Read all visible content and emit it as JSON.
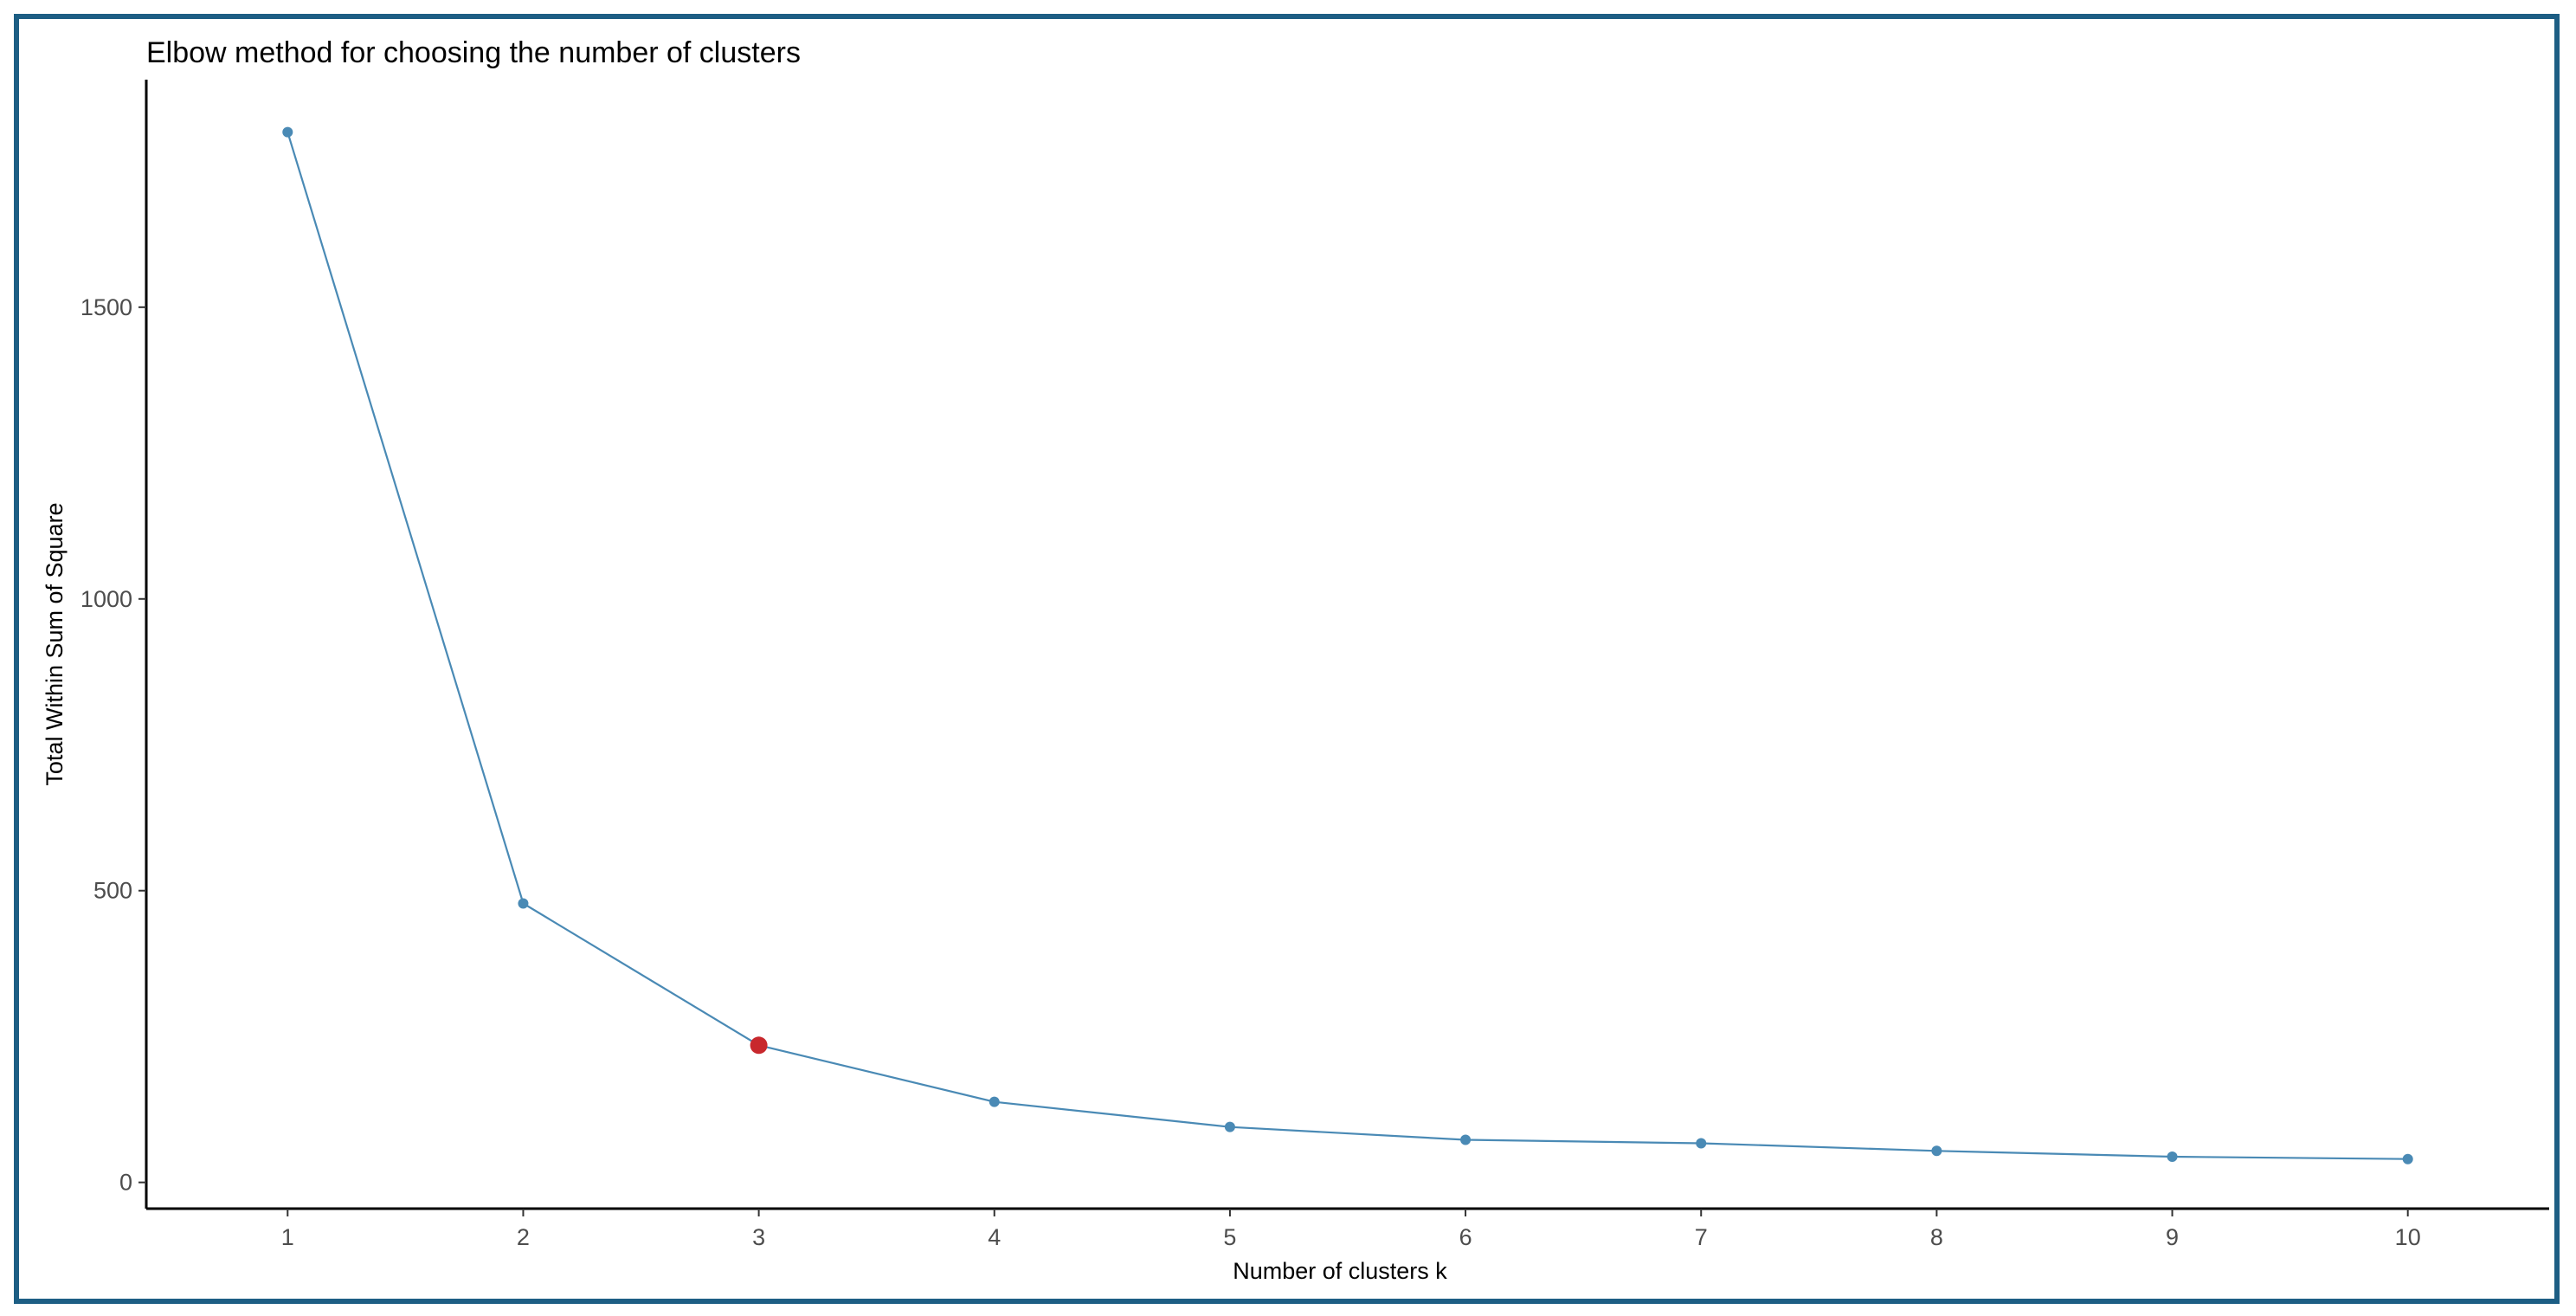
{
  "chart_data": {
    "type": "line",
    "title": "Elbow method for choosing the number of clusters",
    "xlabel": "Number of clusters k",
    "ylabel": "Total Within Sum of Square",
    "x": [
      1,
      2,
      3,
      4,
      5,
      6,
      7,
      8,
      9,
      10
    ],
    "series": [
      {
        "values": [
          1800,
          478,
          235,
          138,
          95,
          73,
          67,
          54,
          44,
          40
        ],
        "color": "#4a8ab5"
      }
    ],
    "highlight": {
      "x": 3,
      "y": 235,
      "color": "#c8282d"
    },
    "x_ticks": [
      "1",
      "2",
      "3",
      "4",
      "5",
      "6",
      "7",
      "8",
      "9",
      "10"
    ],
    "y_ticks": [
      0,
      500,
      1000,
      1500
    ],
    "xlim": [
      0.4,
      10.6
    ],
    "ylim": [
      -45,
      1890
    ],
    "grid": false,
    "legend": "none"
  }
}
